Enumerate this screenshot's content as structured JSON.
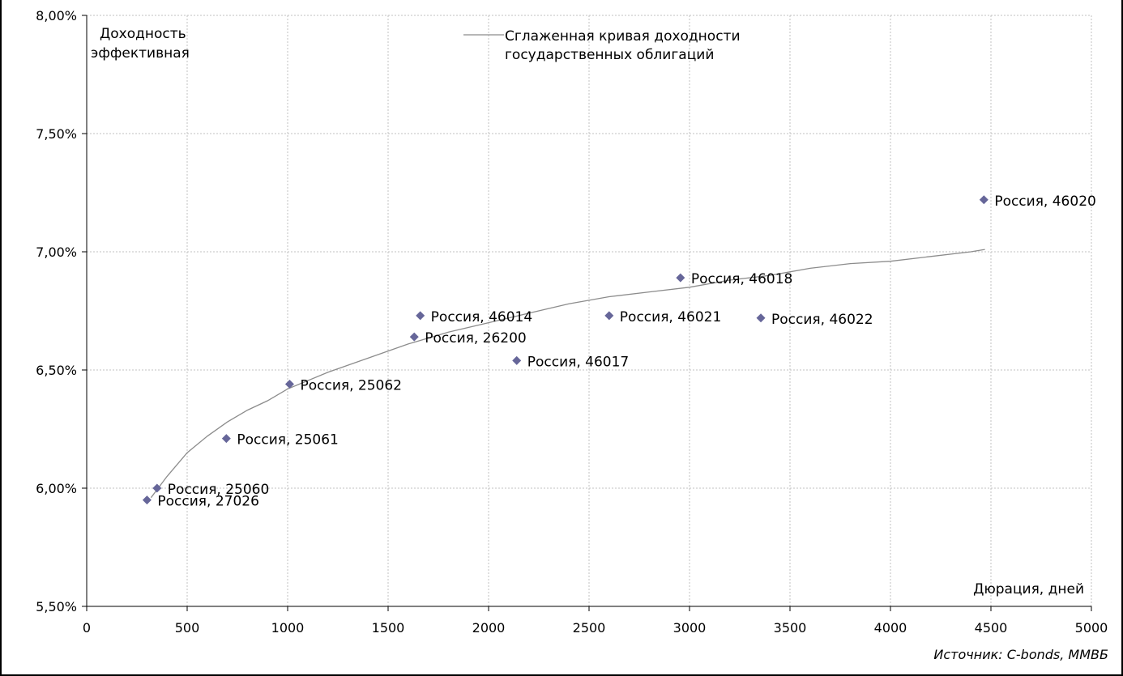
{
  "chart_data": {
    "type": "scatter",
    "ylabel": [
      "Доходность",
      "эффективная"
    ],
    "xlabel": "Дюрация, дней",
    "source": "Источник: C-bonds, ММВБ",
    "xlim": [
      0,
      5000
    ],
    "ylim": [
      5.5,
      8.0
    ],
    "x_ticks": [
      0,
      500,
      1000,
      1500,
      2000,
      2500,
      3000,
      3500,
      4000,
      4500,
      5000
    ],
    "x_tick_labels": [
      "0",
      "500",
      "1000",
      "1500",
      "2000",
      "2500",
      "3000",
      "3500",
      "4000",
      "4500",
      "5000"
    ],
    "y_ticks": [
      5.5,
      6.0,
      6.5,
      7.0,
      7.5,
      8.0
    ],
    "y_tick_labels": [
      "5,50%",
      "6,00%",
      "6,50%",
      "7,00%",
      "7,50%",
      "8,00%"
    ],
    "grid": true,
    "legend": {
      "placement": "top-center",
      "lines": [
        "Сглаженная кривая доходности",
        "государственных облигаций"
      ]
    },
    "colors": {
      "marker": "#666699",
      "curve": "#8c8c8c",
      "grid": "#c0c0c0",
      "axis": "#000000"
    },
    "points": [
      {
        "x": 300,
        "y": 5.95,
        "label": "Россия, 27026"
      },
      {
        "x": 350,
        "y": 6.0,
        "label": "Россия, 25060"
      },
      {
        "x": 695,
        "y": 6.21,
        "label": "Россия, 25061"
      },
      {
        "x": 1010,
        "y": 6.44,
        "label": "Россия, 25062"
      },
      {
        "x": 1630,
        "y": 6.64,
        "label": "Россия, 26200"
      },
      {
        "x": 1660,
        "y": 6.73,
        "label": "Россия, 46014"
      },
      {
        "x": 2140,
        "y": 6.54,
        "label": "Россия, 46017"
      },
      {
        "x": 2600,
        "y": 6.73,
        "label": "Россия, 46021"
      },
      {
        "x": 2955,
        "y": 6.89,
        "label": "Россия, 46018"
      },
      {
        "x": 3355,
        "y": 6.72,
        "label": "Россия, 46022"
      },
      {
        "x": 4465,
        "y": 7.22,
        "label": "Россия, 46020"
      }
    ],
    "curve": {
      "name": "Сглаженная кривая доходности государственных облигаций",
      "x": [
        320,
        400,
        500,
        600,
        700,
        800,
        900,
        1000,
        1200,
        1400,
        1600,
        1800,
        2000,
        2200,
        2400,
        2600,
        2800,
        3000,
        3200,
        3400,
        3600,
        3800,
        4000,
        4200,
        4400,
        4470
      ],
      "y": [
        5.96,
        6.05,
        6.15,
        6.22,
        6.28,
        6.33,
        6.37,
        6.42,
        6.49,
        6.55,
        6.61,
        6.66,
        6.7,
        6.74,
        6.78,
        6.81,
        6.83,
        6.85,
        6.88,
        6.9,
        6.93,
        6.95,
        6.96,
        6.98,
        7.0,
        7.01
      ]
    }
  }
}
